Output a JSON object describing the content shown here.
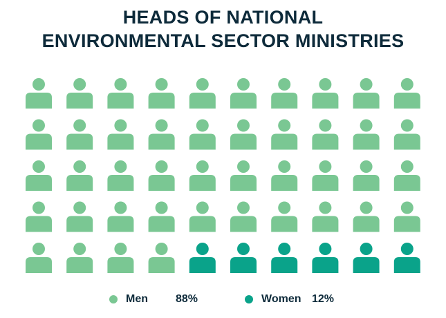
{
  "title": {
    "line1": "HEADS OF NATIONAL",
    "line2": "ENVIRONMENTAL  SECTOR MINISTRIES"
  },
  "colors": {
    "men": "#7ac793",
    "women": "#0aa38a",
    "text": "#0d2a3a"
  },
  "legend": {
    "men_label": "Men",
    "men_value": "88%",
    "women_label": "Women",
    "women_value": "12%"
  },
  "chart_data": {
    "type": "pictogram",
    "title": "HEADS OF NATIONAL ENVIRONMENTAL SECTOR MINISTRIES",
    "rows": 5,
    "cols": 10,
    "total_icons": 50,
    "series": [
      {
        "name": "Men",
        "value": 88,
        "unit": "%",
        "icons": 44
      },
      {
        "name": "Women",
        "value": 12,
        "unit": "%",
        "icons": 6
      }
    ]
  }
}
